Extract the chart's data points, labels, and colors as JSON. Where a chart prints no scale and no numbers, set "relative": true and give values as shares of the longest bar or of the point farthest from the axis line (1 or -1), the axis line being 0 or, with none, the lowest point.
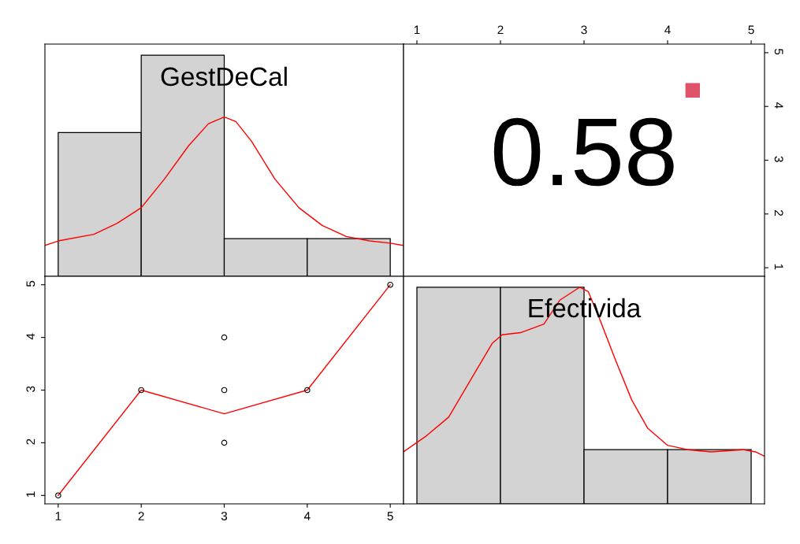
{
  "chart_data": [
    {
      "type": "histogram",
      "title": "GestDeCal",
      "relative": true,
      "bins": [
        1,
        2,
        3,
        4,
        5
      ],
      "xlim": [
        0.84,
        5.16
      ],
      "series": [
        {
          "type": "histogram",
          "color": "#d3d3d3",
          "values": [
            0.65,
            1,
            0.17,
            0.17
          ]
        },
        {
          "type": "line",
          "color": "#ff0000",
          "x": [
            0.84,
            1.0,
            1.43,
            1.71,
            2.0,
            2.28,
            2.57,
            2.81,
            3.0,
            3.14,
            3.33,
            3.61,
            3.9,
            4.18,
            4.47,
            4.75,
            5.0,
            5.15
          ],
          "values": [
            0.14,
            0.16,
            0.19,
            0.24,
            0.31,
            0.44,
            0.59,
            0.69,
            0.72,
            0.7,
            0.61,
            0.44,
            0.31,
            0.23,
            0.18,
            0.16,
            0.15,
            0.14
          ]
        }
      ]
    },
    {
      "type": "scatter",
      "annotations": [
        "0.58"
      ],
      "xlim": [
        0.84,
        5.16
      ],
      "ylim": [
        0.84,
        5.16
      ],
      "xticks": [
        1,
        2,
        3,
        4,
        5
      ],
      "yticks": [
        1,
        2,
        3,
        4,
        5
      ],
      "series": [
        {
          "color": "#df536b",
          "marker": "square",
          "x": [
            4.3
          ],
          "values": [
            4.3
          ]
        }
      ]
    },
    {
      "type": "scatter",
      "xlim": [
        0.84,
        5.16
      ],
      "ylim": [
        0.84,
        5.16
      ],
      "xticks": [
        1,
        2,
        3,
        4,
        5
      ],
      "yticks": [
        1,
        2,
        3,
        4,
        5
      ],
      "series": [
        {
          "type": "scatter",
          "marker": "circle",
          "color": "#000000",
          "x": [
            1,
            2,
            3,
            3,
            3,
            4,
            5
          ],
          "values": [
            1,
            3,
            2,
            3,
            4,
            3,
            5
          ]
        },
        {
          "type": "line",
          "color": "#ff0000",
          "x": [
            1,
            2,
            3,
            4,
            5
          ],
          "values": [
            1,
            3,
            2.55,
            3,
            5
          ]
        }
      ]
    },
    {
      "type": "histogram",
      "title": "Efectivida",
      "relative": true,
      "bins": [
        1,
        2,
        3,
        4,
        5
      ],
      "xlim": [
        0.84,
        5.16
      ],
      "series": [
        {
          "type": "histogram",
          "color": "#d3d3d3",
          "values": [
            1,
            1,
            0.25,
            0.25
          ]
        },
        {
          "type": "line",
          "color": "#ff0000",
          "x": [
            0.84,
            1.1,
            1.38,
            1.67,
            1.9,
            2.02,
            2.24,
            2.52,
            2.71,
            2.95,
            3.05,
            3.19,
            3.38,
            3.57,
            3.76,
            4.0,
            4.24,
            4.52,
            4.9,
            5.05,
            5.16
          ],
          "values": [
            0.24,
            0.31,
            0.4,
            0.59,
            0.74,
            0.78,
            0.79,
            0.83,
            0.94,
            1.0,
            0.98,
            0.85,
            0.66,
            0.48,
            0.35,
            0.27,
            0.25,
            0.24,
            0.25,
            0.24,
            0.22
          ]
        }
      ]
    }
  ]
}
